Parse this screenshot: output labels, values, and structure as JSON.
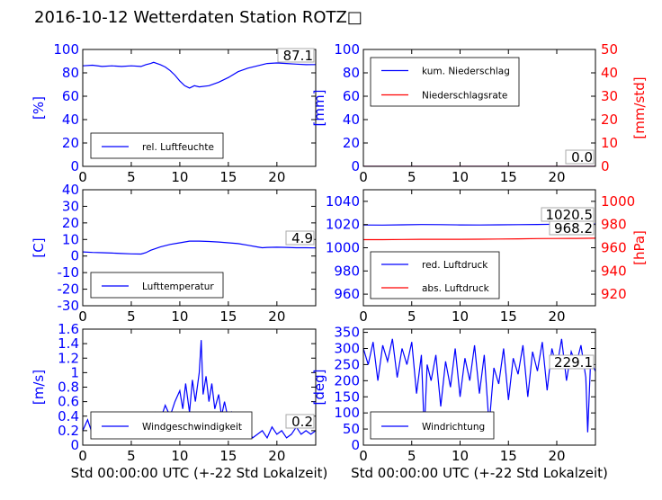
{
  "figure": {
    "title": "2016-10-12 Wetterdaten Station ROTZ□"
  },
  "colors": {
    "left_axis": "#0000ff",
    "right_axis": "#ff0000",
    "series_blue": "#0000ff",
    "series_red": "#ff0000"
  },
  "chart_data": [
    {
      "id": "humidity",
      "type": "line",
      "ylabel": "[%]",
      "xlabel": "",
      "xlim": [
        0,
        24
      ],
      "xticks": [
        0,
        5,
        10,
        15,
        20
      ],
      "ylim": [
        0,
        100
      ],
      "yticks": [
        0,
        20,
        40,
        60,
        80,
        100
      ],
      "legend_placement": "lower-left",
      "current_value": "87.1",
      "series": [
        {
          "name": "rel. Luftfeuchte",
          "color": "#0000ff",
          "x": [
            0,
            1,
            2,
            3,
            4,
            5,
            6,
            6.5,
            7,
            7.3,
            8,
            8.5,
            9,
            9.5,
            10,
            10.5,
            11,
            11.5,
            12,
            13,
            14,
            15,
            16,
            17,
            18,
            19,
            20,
            21,
            22,
            23,
            24
          ],
          "y": [
            86,
            86.5,
            85.5,
            86,
            85.5,
            86,
            85.5,
            87,
            88,
            89,
            87,
            85,
            82,
            78,
            73,
            69,
            67,
            69,
            68,
            69,
            72,
            76,
            81,
            84,
            86,
            88,
            88.5,
            88,
            87.5,
            87,
            87.1
          ]
        }
      ]
    },
    {
      "id": "precipitation",
      "type": "line",
      "ylabel": "[mm]",
      "ylabel_right": "[mm/std]",
      "xlabel": "",
      "xlim": [
        0,
        24
      ],
      "xticks": [
        0,
        5,
        10,
        15,
        20
      ],
      "ylim": [
        0,
        100
      ],
      "yticks": [
        0,
        20,
        40,
        60,
        80,
        100
      ],
      "ylim_right": [
        0,
        50
      ],
      "yticks_right": [
        0,
        10,
        20,
        30,
        40,
        50
      ],
      "legend_placement": "upper-left",
      "current_value": "0.0",
      "current_value_right": "0.0",
      "series": [
        {
          "name": "kum. Niederschlag",
          "color": "#0000ff",
          "axis": "left",
          "x": [
            0,
            24
          ],
          "y": [
            0,
            0
          ]
        },
        {
          "name": "Niederschlagsrate",
          "color": "#ff0000",
          "axis": "right",
          "x": [
            0,
            24
          ],
          "y": [
            0,
            0
          ]
        }
      ]
    },
    {
      "id": "temperature",
      "type": "line",
      "ylabel": "[C]",
      "xlabel": "",
      "xlim": [
        0,
        24
      ],
      "xticks": [
        0,
        5,
        10,
        15,
        20
      ],
      "ylim": [
        -30,
        40
      ],
      "yticks": [
        -30,
        -20,
        -10,
        0,
        10,
        20,
        30,
        40
      ],
      "legend_placement": "lower-left",
      "current_value": "4.9",
      "series": [
        {
          "name": "Lufttemperatur",
          "color": "#0000ff",
          "x": [
            0,
            1,
            2,
            3,
            4,
            5,
            6,
            6.5,
            7,
            7.5,
            8,
            9,
            10,
            11,
            12,
            13,
            14,
            15,
            16,
            17,
            18,
            18.5,
            19,
            20,
            21,
            22,
            23,
            24
          ],
          "y": [
            2.5,
            2.2,
            2,
            1.8,
            1.5,
            1.3,
            1.2,
            2,
            3.5,
            4.5,
            5.5,
            7,
            8,
            9,
            9,
            8.8,
            8.5,
            8,
            7.5,
            6.5,
            5.5,
            5,
            5.2,
            5.3,
            5.2,
            5,
            5,
            4.9
          ]
        }
      ]
    },
    {
      "id": "pressure",
      "type": "line",
      "ylabel": "",
      "ylabel_right": "[hPa]",
      "xlabel": "",
      "xlim": [
        0,
        24
      ],
      "xticks": [
        0,
        5,
        10,
        15,
        20
      ],
      "ylim": [
        950,
        1050
      ],
      "yticks": [
        960,
        980,
        1000,
        1020,
        1040
      ],
      "ylim_right": [
        910,
        1010
      ],
      "yticks_right": [
        920,
        940,
        960,
        980,
        1000
      ],
      "legend_placement": "lower-left",
      "current_value": "1020.5",
      "current_value_right": "968.2",
      "series": [
        {
          "name": "red. Luftdruck",
          "color": "#0000ff",
          "axis": "left",
          "x": [
            0,
            2,
            4,
            6,
            8,
            10,
            12,
            14,
            16,
            18,
            20,
            22,
            24
          ],
          "y": [
            1019.6,
            1019.5,
            1019.8,
            1020,
            1019.9,
            1019.7,
            1019.6,
            1019.8,
            1019.9,
            1020.1,
            1020.3,
            1020.4,
            1020.5
          ]
        },
        {
          "name": "abs. Luftdruck",
          "color": "#ff0000",
          "axis": "right",
          "x": [
            0,
            2,
            4,
            6,
            8,
            10,
            12,
            14,
            16,
            18,
            20,
            22,
            24
          ],
          "y": [
            967,
            967,
            967.1,
            967.3,
            967.3,
            967.3,
            967.4,
            967.5,
            967.7,
            967.9,
            968,
            968.1,
            968.2
          ]
        }
      ]
    },
    {
      "id": "wind_speed",
      "type": "line",
      "ylabel": "[m/s]",
      "xlabel": "Std 00:00:00 UTC (+-22 Std Lokalzeit)",
      "xlim": [
        0,
        24
      ],
      "xticks": [
        0,
        5,
        10,
        15,
        20
      ],
      "ylim": [
        0,
        1.6
      ],
      "yticks": [
        0,
        0.2,
        0.4,
        0.6,
        0.8,
        1.0,
        1.2,
        1.4,
        1.6
      ],
      "legend_placement": "lower-left",
      "current_value": "0.2",
      "series": [
        {
          "name": "Windgeschwindigkeit",
          "color": "#0000ff",
          "x": [
            0,
            0.5,
            1,
            1.5,
            2,
            2.5,
            3,
            3.5,
            4,
            4.5,
            5,
            5.5,
            6,
            6.5,
            7,
            7.5,
            8,
            8.5,
            9,
            9.5,
            10,
            10.3,
            10.6,
            11,
            11.3,
            11.6,
            12,
            12.2,
            12.4,
            12.7,
            13,
            13.3,
            13.6,
            14,
            14.3,
            14.6,
            15,
            15.3,
            15.6,
            16,
            16.5,
            17,
            17.5,
            18,
            18.5,
            19,
            19.5,
            20,
            20.5,
            21,
            21.5,
            22,
            22.5,
            23,
            23.5,
            24
          ],
          "y": [
            0.2,
            0.35,
            0.15,
            0.3,
            0.1,
            0.25,
            0.2,
            0.35,
            0.15,
            0.3,
            0.2,
            0.4,
            0.25,
            0.35,
            0.3,
            0.45,
            0.35,
            0.55,
            0.4,
            0.6,
            0.75,
            0.5,
            0.85,
            0.45,
            0.9,
            0.6,
            1.0,
            1.45,
            0.7,
            0.95,
            0.6,
            0.85,
            0.5,
            0.7,
            0.4,
            0.6,
            0.35,
            0.45,
            0.3,
            0.2,
            0.15,
            0.2,
            0.1,
            0.15,
            0.2,
            0.1,
            0.25,
            0.15,
            0.2,
            0.1,
            0.15,
            0.25,
            0.15,
            0.2,
            0.15,
            0.2
          ]
        }
      ]
    },
    {
      "id": "wind_direction",
      "type": "line",
      "ylabel": "[deg]",
      "xlabel": "Std 00:00:00 UTC (+-22 Std Lokalzeit)",
      "xlim": [
        0,
        24
      ],
      "xticks": [
        0,
        5,
        10,
        15,
        20
      ],
      "ylim": [
        0,
        360
      ],
      "yticks": [
        0,
        50,
        100,
        150,
        200,
        250,
        300,
        350
      ],
      "legend_placement": "lower-left",
      "current_value": "229.1",
      "series": [
        {
          "name": "Windrichtung",
          "color": "#0000ff",
          "x": [
            0,
            0.5,
            1,
            1.5,
            2,
            2.5,
            3,
            3.5,
            4,
            4.5,
            5,
            5.5,
            6,
            6.3,
            6.6,
            7,
            7.5,
            8,
            8.5,
            9,
            9.5,
            10,
            10.5,
            11,
            11.5,
            12,
            12.5,
            13,
            13.5,
            14,
            14.5,
            15,
            15.5,
            16,
            16.5,
            17,
            17.5,
            18,
            18.5,
            19,
            19.5,
            20,
            20.5,
            21,
            21.5,
            22,
            22.5,
            23,
            23.2,
            23.5,
            24
          ],
          "y": [
            300,
            250,
            320,
            200,
            310,
            260,
            330,
            210,
            300,
            250,
            320,
            160,
            280,
            40,
            250,
            200,
            280,
            120,
            260,
            180,
            300,
            150,
            270,
            200,
            310,
            160,
            280,
            60,
            240,
            190,
            300,
            140,
            270,
            220,
            310,
            150,
            290,
            230,
            320,
            170,
            300,
            240,
            330,
            200,
            290,
            250,
            310,
            210,
            40,
            260,
            229
          ]
        }
      ]
    }
  ]
}
